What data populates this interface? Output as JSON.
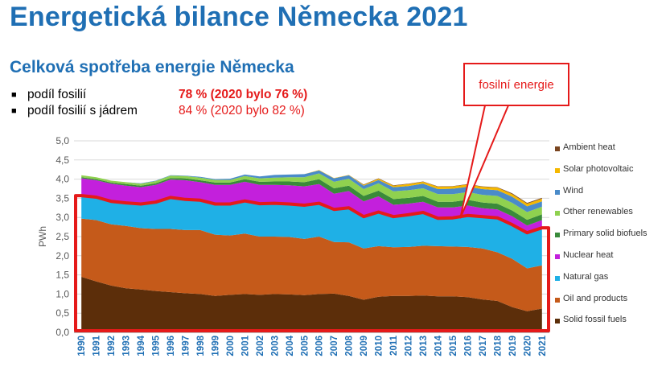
{
  "title": "Energetická bilance Německa 2021",
  "subtitle": "Celková spotřeba energie Německa",
  "bullets": [
    {
      "label": "podíl fosilií",
      "value": "78 % (2020 bylo 76 %)"
    },
    {
      "label": "podíl fosilií s jádrem",
      "value": "84 % (2020 bylo 82 %)"
    }
  ],
  "callout": "fosilní energie",
  "colors": {
    "title": "#1f6fb4",
    "highlight": "#e51a1a"
  },
  "chart_data": {
    "type": "area",
    "stacked": true,
    "ylabel": "PWh",
    "ylim": [
      0,
      5
    ],
    "yticks": [
      "0,0",
      "0,5",
      "1,0",
      "1,5",
      "2,0",
      "2,5",
      "3,0",
      "3,5",
      "4,0",
      "4,5",
      "5,0"
    ],
    "grid": true,
    "legend_position": "right",
    "categories": [
      "1990",
      "1991",
      "1992",
      "1993",
      "1994",
      "1995",
      "1996",
      "1997",
      "1998",
      "1999",
      "2000",
      "2001",
      "2002",
      "2003",
      "2004",
      "2005",
      "2006",
      "2007",
      "2008",
      "2009",
      "2010",
      "2011",
      "2012",
      "2013",
      "2014",
      "2015",
      "2016",
      "2017",
      "2018",
      "2019",
      "2020",
      "2021"
    ],
    "series": [
      {
        "name": "Solid fossil fuels",
        "color": "#5c2e0a",
        "values": [
          1.45,
          1.33,
          1.22,
          1.15,
          1.12,
          1.08,
          1.05,
          1.02,
          1.0,
          0.95,
          0.98,
          1.0,
          0.98,
          1.0,
          0.99,
          0.97,
          1.0,
          1.01,
          0.95,
          0.85,
          0.93,
          0.95,
          0.95,
          0.96,
          0.94,
          0.94,
          0.92,
          0.86,
          0.82,
          0.66,
          0.55,
          0.62
        ]
      },
      {
        "name": "Oil and products",
        "color": "#c55a1a",
        "values": [
          1.52,
          1.6,
          1.6,
          1.63,
          1.6,
          1.62,
          1.65,
          1.65,
          1.67,
          1.6,
          1.55,
          1.58,
          1.52,
          1.5,
          1.5,
          1.47,
          1.5,
          1.35,
          1.4,
          1.34,
          1.32,
          1.27,
          1.28,
          1.3,
          1.31,
          1.3,
          1.31,
          1.33,
          1.27,
          1.26,
          1.12,
          1.13
        ]
      },
      {
        "name": "Natural gas",
        "color": "#1fb0e6",
        "values": [
          0.6,
          0.6,
          0.6,
          0.6,
          0.63,
          0.7,
          0.82,
          0.8,
          0.78,
          0.8,
          0.82,
          0.85,
          0.86,
          0.87,
          0.86,
          0.88,
          0.87,
          0.85,
          0.9,
          0.83,
          0.89,
          0.8,
          0.84,
          0.87,
          0.73,
          0.75,
          0.82,
          0.83,
          0.9,
          0.89,
          0.93,
          0.98
        ]
      },
      {
        "name": "Nuclear heat",
        "color": "#c320dc",
        "values": [
          0.45,
          0.44,
          0.46,
          0.45,
          0.44,
          0.45,
          0.47,
          0.5,
          0.47,
          0.5,
          0.5,
          0.5,
          0.49,
          0.48,
          0.49,
          0.49,
          0.5,
          0.41,
          0.44,
          0.4,
          0.41,
          0.31,
          0.29,
          0.28,
          0.28,
          0.27,
          0.26,
          0.22,
          0.22,
          0.22,
          0.19,
          0.2
        ]
      },
      {
        "name": "Primary solid biofuels",
        "color": "#3a8a3a",
        "values": [
          0.03,
          0.03,
          0.03,
          0.04,
          0.04,
          0.04,
          0.04,
          0.05,
          0.05,
          0.06,
          0.06,
          0.07,
          0.08,
          0.09,
          0.1,
          0.11,
          0.13,
          0.14,
          0.14,
          0.14,
          0.15,
          0.15,
          0.15,
          0.15,
          0.15,
          0.15,
          0.15,
          0.15,
          0.15,
          0.15,
          0.15,
          0.15
        ]
      },
      {
        "name": "Other renewables",
        "color": "#8fd14f",
        "values": [
          0.05,
          0.05,
          0.05,
          0.05,
          0.05,
          0.06,
          0.06,
          0.06,
          0.07,
          0.07,
          0.07,
          0.08,
          0.09,
          0.1,
          0.11,
          0.13,
          0.15,
          0.17,
          0.18,
          0.18,
          0.19,
          0.2,
          0.2,
          0.2,
          0.2,
          0.2,
          0.2,
          0.2,
          0.2,
          0.2,
          0.2,
          0.2
        ]
      },
      {
        "name": "Wind",
        "color": "#4a8bc9",
        "values": [
          0.0,
          0.0,
          0.0,
          0.0,
          0.01,
          0.01,
          0.01,
          0.01,
          0.02,
          0.02,
          0.03,
          0.04,
          0.05,
          0.07,
          0.07,
          0.08,
          0.08,
          0.09,
          0.09,
          0.09,
          0.09,
          0.11,
          0.11,
          0.12,
          0.13,
          0.14,
          0.14,
          0.15,
          0.15,
          0.16,
          0.15,
          0.14
        ]
      },
      {
        "name": "Solar photovoltaic",
        "color": "#f5b800",
        "values": [
          0.0,
          0.0,
          0.0,
          0.0,
          0.0,
          0.0,
          0.0,
          0.0,
          0.0,
          0.0,
          0.0,
          0.0,
          0.0,
          0.0,
          0.0,
          0.0,
          0.01,
          0.01,
          0.01,
          0.02,
          0.03,
          0.04,
          0.05,
          0.05,
          0.06,
          0.06,
          0.06,
          0.06,
          0.07,
          0.07,
          0.07,
          0.07
        ]
      },
      {
        "name": "Ambient heat",
        "color": "#7a4520",
        "values": [
          0.0,
          0.0,
          0.0,
          0.0,
          0.0,
          0.0,
          0.0,
          0.0,
          0.0,
          0.0,
          0.0,
          0.0,
          0.0,
          0.0,
          0.0,
          0.0,
          0.0,
          0.0,
          0.0,
          0.01,
          0.01,
          0.01,
          0.01,
          0.01,
          0.01,
          0.01,
          0.01,
          0.01,
          0.01,
          0.02,
          0.02,
          0.02
        ]
      }
    ]
  }
}
